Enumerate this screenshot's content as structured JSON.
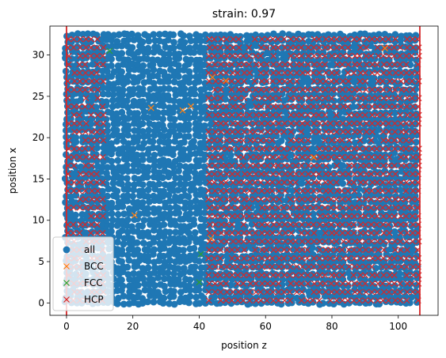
{
  "chart_data": {
    "type": "scatter",
    "title": "strain: 0.97",
    "xlabel": "position z",
    "ylabel": "position x",
    "xlim": [
      -5,
      112
    ],
    "ylim": [
      -1.5,
      33.5
    ],
    "xticks": [
      "0",
      "20",
      "40",
      "60",
      "80",
      "100"
    ],
    "yticks": [
      "0",
      "5",
      "10",
      "15",
      "20",
      "25",
      "30"
    ],
    "grid": false,
    "legend_position": "lower-left",
    "vertical_lines": [
      0,
      106.5
    ],
    "vertical_line_color": "#d62728",
    "series": [
      {
        "name": "all",
        "marker": "circle",
        "color": "#1f77b4",
        "description_region": {
          "z_range": [
            0,
            106.5
          ],
          "x_range": [
            0,
            32.5
          ]
        }
      },
      {
        "name": "BCC",
        "marker": "x",
        "color": "#ff7f0e",
        "points": [
          [
            25.5,
            23.6
          ],
          [
            35,
            23.3
          ],
          [
            37.5,
            23.8
          ],
          [
            20.5,
            10.6
          ],
          [
            43.5,
            7.8
          ],
          [
            44,
            27.3
          ],
          [
            48,
            26.9
          ],
          [
            74.5,
            17.6
          ],
          [
            96,
            30.8
          ]
        ]
      },
      {
        "name": "FCC",
        "marker": "x",
        "color": "#2ca02c",
        "points": [
          [
            13,
            30.5
          ],
          [
            40.5,
            5.9
          ],
          [
            40,
            2.5
          ]
        ]
      },
      {
        "name": "HCP",
        "marker": "x",
        "color": "#d62728",
        "description_region": {
          "z_range": [
            43,
            106.5
          ],
          "x_range": [
            0,
            32.5
          ]
        }
      }
    ]
  }
}
